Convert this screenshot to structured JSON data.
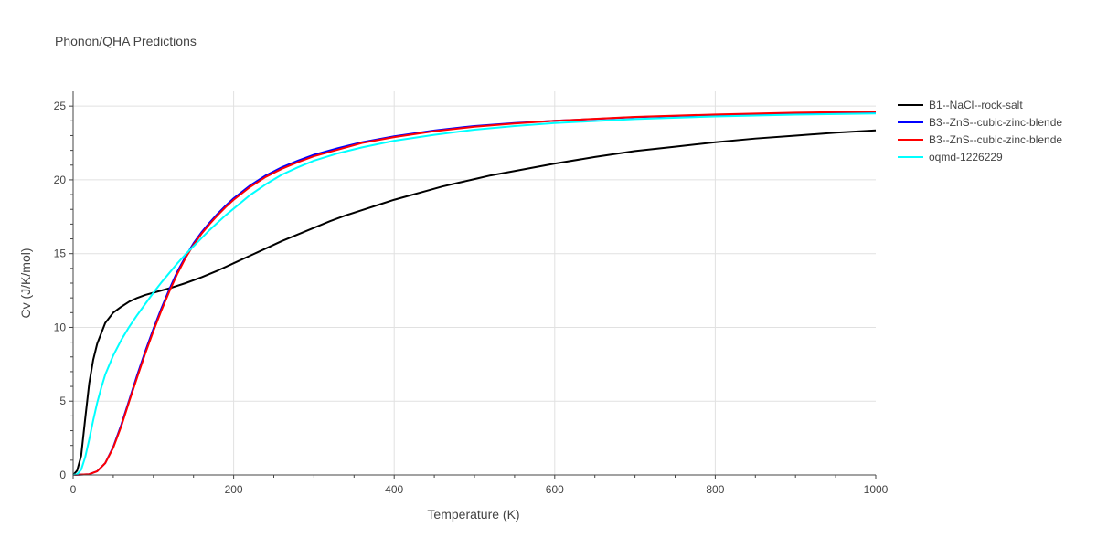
{
  "chart_data": {
    "type": "line",
    "title": "Phonon/QHA Predictions",
    "xlabel": "Temperature (K)",
    "ylabel": "Cv (J/K/mol)",
    "xlim": [
      0,
      1000
    ],
    "ylim": [
      0,
      26
    ],
    "xticks": [
      0,
      200,
      400,
      600,
      800,
      1000
    ],
    "yticks": [
      0,
      5,
      10,
      15,
      20,
      25
    ],
    "grid": true,
    "legend_position": "right",
    "series": [
      {
        "name": "B1--NaCl--rock-salt",
        "color": "#000000",
        "points": [
          [
            0,
            0
          ],
          [
            5,
            0.3
          ],
          [
            10,
            1.3
          ],
          [
            15,
            3.8
          ],
          [
            20,
            6.2
          ],
          [
            25,
            7.8
          ],
          [
            30,
            8.9
          ],
          [
            40,
            10.3
          ],
          [
            50,
            11.0
          ],
          [
            60,
            11.4
          ],
          [
            70,
            11.75
          ],
          [
            80,
            12.0
          ],
          [
            90,
            12.2
          ],
          [
            100,
            12.35
          ],
          [
            120,
            12.65
          ],
          [
            140,
            13.0
          ],
          [
            160,
            13.4
          ],
          [
            180,
            13.85
          ],
          [
            200,
            14.35
          ],
          [
            220,
            14.85
          ],
          [
            240,
            15.35
          ],
          [
            260,
            15.85
          ],
          [
            280,
            16.3
          ],
          [
            300,
            16.75
          ],
          [
            320,
            17.2
          ],
          [
            340,
            17.6
          ],
          [
            360,
            17.95
          ],
          [
            380,
            18.3
          ],
          [
            400,
            18.65
          ],
          [
            420,
            18.95
          ],
          [
            440,
            19.25
          ],
          [
            460,
            19.55
          ],
          [
            480,
            19.8
          ],
          [
            500,
            20.05
          ],
          [
            520,
            20.3
          ],
          [
            550,
            20.6
          ],
          [
            600,
            21.1
          ],
          [
            650,
            21.55
          ],
          [
            700,
            21.95
          ],
          [
            750,
            22.25
          ],
          [
            800,
            22.55
          ],
          [
            850,
            22.8
          ],
          [
            900,
            23.0
          ],
          [
            950,
            23.2
          ],
          [
            1000,
            23.35
          ]
        ]
      },
      {
        "name": "B3--ZnS--cubic-zinc-blende",
        "color": "#0000ff",
        "points": [
          [
            0,
            0
          ],
          [
            10,
            0.02
          ],
          [
            20,
            0.05
          ],
          [
            30,
            0.25
          ],
          [
            40,
            0.8
          ],
          [
            50,
            1.9
          ],
          [
            60,
            3.4
          ],
          [
            70,
            5.1
          ],
          [
            80,
            6.8
          ],
          [
            90,
            8.4
          ],
          [
            100,
            9.9
          ],
          [
            110,
            11.3
          ],
          [
            120,
            12.6
          ],
          [
            130,
            13.8
          ],
          [
            140,
            14.8
          ],
          [
            150,
            15.7
          ],
          [
            160,
            16.45
          ],
          [
            170,
            17.1
          ],
          [
            180,
            17.7
          ],
          [
            190,
            18.25
          ],
          [
            200,
            18.75
          ],
          [
            220,
            19.6
          ],
          [
            240,
            20.3
          ],
          [
            260,
            20.85
          ],
          [
            280,
            21.3
          ],
          [
            300,
            21.7
          ],
          [
            330,
            22.15
          ],
          [
            360,
            22.55
          ],
          [
            400,
            22.95
          ],
          [
            450,
            23.35
          ],
          [
            500,
            23.65
          ],
          [
            550,
            23.85
          ],
          [
            600,
            24.0
          ],
          [
            700,
            24.25
          ],
          [
            800,
            24.4
          ],
          [
            900,
            24.5
          ],
          [
            1000,
            24.58
          ]
        ]
      },
      {
        "name": "B3--ZnS--cubic-zinc-blende",
        "color": "#ff0000",
        "points": [
          [
            0,
            0
          ],
          [
            10,
            0.02
          ],
          [
            20,
            0.05
          ],
          [
            30,
            0.25
          ],
          [
            40,
            0.8
          ],
          [
            50,
            1.85
          ],
          [
            60,
            3.3
          ],
          [
            70,
            5.0
          ],
          [
            80,
            6.65
          ],
          [
            90,
            8.25
          ],
          [
            100,
            9.75
          ],
          [
            110,
            11.15
          ],
          [
            120,
            12.45
          ],
          [
            130,
            13.65
          ],
          [
            140,
            14.7
          ],
          [
            150,
            15.6
          ],
          [
            160,
            16.35
          ],
          [
            170,
            17.0
          ],
          [
            180,
            17.6
          ],
          [
            190,
            18.15
          ],
          [
            200,
            18.65
          ],
          [
            220,
            19.5
          ],
          [
            240,
            20.2
          ],
          [
            260,
            20.75
          ],
          [
            280,
            21.2
          ],
          [
            300,
            21.6
          ],
          [
            330,
            22.05
          ],
          [
            360,
            22.5
          ],
          [
            400,
            22.9
          ],
          [
            450,
            23.3
          ],
          [
            500,
            23.6
          ],
          [
            550,
            23.82
          ],
          [
            600,
            24.0
          ],
          [
            700,
            24.27
          ],
          [
            800,
            24.43
          ],
          [
            900,
            24.55
          ],
          [
            1000,
            24.63
          ]
        ]
      },
      {
        "name": "oqmd-1226229",
        "color": "#00ffff",
        "points": [
          [
            0,
            0
          ],
          [
            5,
            0.05
          ],
          [
            10,
            0.35
          ],
          [
            15,
            1.2
          ],
          [
            20,
            2.4
          ],
          [
            25,
            3.7
          ],
          [
            30,
            4.9
          ],
          [
            35,
            5.9
          ],
          [
            40,
            6.8
          ],
          [
            50,
            8.1
          ],
          [
            60,
            9.15
          ],
          [
            70,
            10.05
          ],
          [
            80,
            10.85
          ],
          [
            90,
            11.6
          ],
          [
            100,
            12.35
          ],
          [
            110,
            13.05
          ],
          [
            120,
            13.7
          ],
          [
            130,
            14.35
          ],
          [
            140,
            14.95
          ],
          [
            150,
            15.5
          ],
          [
            160,
            16.05
          ],
          [
            170,
            16.6
          ],
          [
            180,
            17.1
          ],
          [
            190,
            17.6
          ],
          [
            200,
            18.05
          ],
          [
            220,
            18.95
          ],
          [
            240,
            19.7
          ],
          [
            260,
            20.35
          ],
          [
            280,
            20.85
          ],
          [
            300,
            21.3
          ],
          [
            330,
            21.8
          ],
          [
            360,
            22.2
          ],
          [
            400,
            22.65
          ],
          [
            450,
            23.05
          ],
          [
            500,
            23.4
          ],
          [
            550,
            23.65
          ],
          [
            600,
            23.85
          ],
          [
            700,
            24.12
          ],
          [
            800,
            24.3
          ],
          [
            900,
            24.42
          ],
          [
            1000,
            24.5
          ]
        ]
      }
    ]
  }
}
